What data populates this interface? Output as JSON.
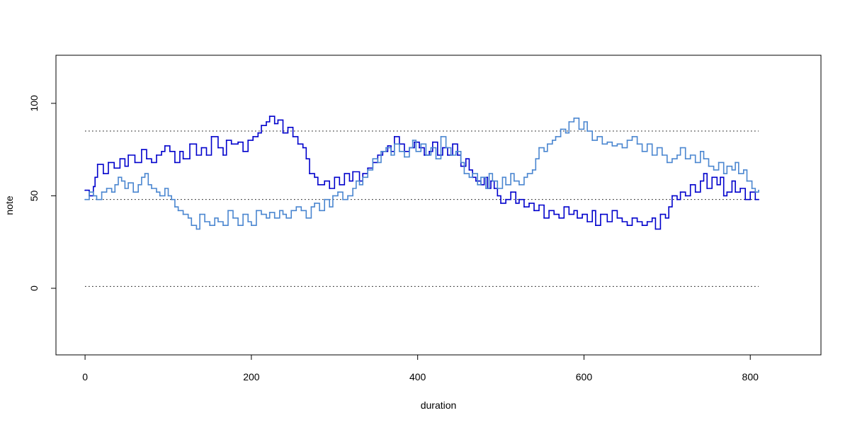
{
  "chart_data": {
    "type": "line",
    "step": true,
    "title": "",
    "xlabel": "duration",
    "ylabel": "note",
    "xlim": [
      -35,
      885
    ],
    "ylim": [
      -36,
      126
    ],
    "xticks": [
      0,
      200,
      400,
      600,
      800
    ],
    "yticks": [
      0,
      50,
      100
    ],
    "reference_lines": [
      {
        "y": 85,
        "x": [
          0,
          810
        ],
        "style": "dotted"
      },
      {
        "y": 48,
        "x": [
          0,
          810
        ],
        "style": "dotted"
      },
      {
        "y": 1,
        "x": [
          0,
          810
        ],
        "style": "dotted"
      }
    ],
    "series": [
      {
        "color": "#0000cc",
        "points": [
          [
            0,
            53
          ],
          [
            5,
            50
          ],
          [
            10,
            55
          ],
          [
            12,
            60
          ],
          [
            15,
            67
          ],
          [
            22,
            62
          ],
          [
            28,
            68
          ],
          [
            35,
            65
          ],
          [
            42,
            70
          ],
          [
            48,
            66
          ],
          [
            52,
            72
          ],
          [
            60,
            68
          ],
          [
            68,
            75
          ],
          [
            74,
            70
          ],
          [
            80,
            68
          ],
          [
            86,
            72
          ],
          [
            92,
            74
          ],
          [
            96,
            77
          ],
          [
            102,
            74
          ],
          [
            108,
            68
          ],
          [
            114,
            74
          ],
          [
            118,
            70
          ],
          [
            126,
            78
          ],
          [
            134,
            72
          ],
          [
            140,
            76
          ],
          [
            146,
            72
          ],
          [
            152,
            82
          ],
          [
            160,
            76
          ],
          [
            166,
            72
          ],
          [
            170,
            80
          ],
          [
            176,
            78
          ],
          [
            184,
            79
          ],
          [
            190,
            74
          ],
          [
            196,
            80
          ],
          [
            202,
            82
          ],
          [
            208,
            84
          ],
          [
            212,
            88
          ],
          [
            218,
            90
          ],
          [
            222,
            93
          ],
          [
            228,
            89
          ],
          [
            232,
            91
          ],
          [
            238,
            84
          ],
          [
            244,
            87
          ],
          [
            250,
            82
          ],
          [
            256,
            78
          ],
          [
            262,
            76
          ],
          [
            266,
            70
          ],
          [
            270,
            62
          ],
          [
            276,
            60
          ],
          [
            280,
            56
          ],
          [
            288,
            58
          ],
          [
            294,
            54
          ],
          [
            300,
            60
          ],
          [
            306,
            56
          ],
          [
            312,
            62
          ],
          [
            318,
            58
          ],
          [
            322,
            63
          ],
          [
            330,
            58
          ],
          [
            334,
            62
          ],
          [
            340,
            65
          ],
          [
            346,
            68
          ],
          [
            352,
            72
          ],
          [
            358,
            74
          ],
          [
            364,
            77
          ],
          [
            368,
            74
          ],
          [
            372,
            82
          ],
          [
            378,
            78
          ],
          [
            384,
            74
          ],
          [
            390,
            76
          ],
          [
            396,
            79
          ],
          [
            402,
            76
          ],
          [
            408,
            72
          ],
          [
            414,
            74
          ],
          [
            418,
            79
          ],
          [
            424,
            72
          ],
          [
            430,
            76
          ],
          [
            436,
            72
          ],
          [
            442,
            78
          ],
          [
            448,
            72
          ],
          [
            452,
            66
          ],
          [
            458,
            70
          ],
          [
            462,
            64
          ],
          [
            466,
            60
          ],
          [
            470,
            58
          ],
          [
            476,
            56
          ],
          [
            480,
            60
          ],
          [
            484,
            54
          ],
          [
            488,
            58
          ],
          [
            492,
            54
          ],
          [
            496,
            50
          ],
          [
            500,
            46
          ],
          [
            506,
            48
          ],
          [
            512,
            52
          ],
          [
            518,
            46
          ],
          [
            522,
            48
          ],
          [
            528,
            44
          ],
          [
            534,
            46
          ],
          [
            540,
            42
          ],
          [
            546,
            45
          ],
          [
            552,
            38
          ],
          [
            558,
            42
          ],
          [
            564,
            40
          ],
          [
            570,
            38
          ],
          [
            576,
            44
          ],
          [
            582,
            40
          ],
          [
            588,
            42
          ],
          [
            592,
            38
          ],
          [
            598,
            40
          ],
          [
            604,
            36
          ],
          [
            610,
            42
          ],
          [
            614,
            34
          ],
          [
            620,
            40
          ],
          [
            628,
            36
          ],
          [
            634,
            42
          ],
          [
            640,
            38
          ],
          [
            646,
            36
          ],
          [
            652,
            34
          ],
          [
            658,
            38
          ],
          [
            664,
            36
          ],
          [
            670,
            34
          ],
          [
            676,
            36
          ],
          [
            682,
            38
          ],
          [
            686,
            32
          ],
          [
            692,
            40
          ],
          [
            698,
            38
          ],
          [
            702,
            44
          ],
          [
            706,
            50
          ],
          [
            712,
            48
          ],
          [
            716,
            52
          ],
          [
            722,
            50
          ],
          [
            728,
            56
          ],
          [
            734,
            52
          ],
          [
            740,
            58
          ],
          [
            744,
            62
          ],
          [
            748,
            54
          ],
          [
            754,
            60
          ],
          [
            760,
            56
          ],
          [
            764,
            60
          ],
          [
            768,
            50
          ],
          [
            772,
            52
          ],
          [
            778,
            58
          ],
          [
            782,
            52
          ],
          [
            788,
            54
          ],
          [
            794,
            48
          ],
          [
            800,
            52
          ],
          [
            806,
            48
          ],
          [
            810,
            48
          ]
        ]
      },
      {
        "color": "#4a86d0",
        "points": [
          [
            0,
            48
          ],
          [
            5,
            52
          ],
          [
            10,
            50
          ],
          [
            14,
            48
          ],
          [
            20,
            52
          ],
          [
            26,
            54
          ],
          [
            32,
            52
          ],
          [
            36,
            56
          ],
          [
            40,
            60
          ],
          [
            44,
            58
          ],
          [
            48,
            54
          ],
          [
            52,
            57
          ],
          [
            58,
            52
          ],
          [
            64,
            56
          ],
          [
            68,
            60
          ],
          [
            72,
            62
          ],
          [
            76,
            56
          ],
          [
            80,
            54
          ],
          [
            86,
            52
          ],
          [
            90,
            50
          ],
          [
            96,
            54
          ],
          [
            100,
            50
          ],
          [
            104,
            48
          ],
          [
            108,
            44
          ],
          [
            112,
            42
          ],
          [
            118,
            40
          ],
          [
            124,
            38
          ],
          [
            128,
            34
          ],
          [
            134,
            32
          ],
          [
            138,
            40
          ],
          [
            144,
            36
          ],
          [
            150,
            34
          ],
          [
            156,
            38
          ],
          [
            160,
            36
          ],
          [
            166,
            34
          ],
          [
            172,
            42
          ],
          [
            178,
            38
          ],
          [
            184,
            34
          ],
          [
            190,
            40
          ],
          [
            196,
            36
          ],
          [
            200,
            34
          ],
          [
            206,
            42
          ],
          [
            212,
            40
          ],
          [
            218,
            38
          ],
          [
            222,
            41
          ],
          [
            228,
            38
          ],
          [
            234,
            42
          ],
          [
            238,
            40
          ],
          [
            242,
            38
          ],
          [
            248,
            42
          ],
          [
            254,
            44
          ],
          [
            260,
            42
          ],
          [
            266,
            38
          ],
          [
            272,
            44
          ],
          [
            276,
            46
          ],
          [
            282,
            42
          ],
          [
            288,
            48
          ],
          [
            294,
            44
          ],
          [
            298,
            50
          ],
          [
            304,
            52
          ],
          [
            310,
            48
          ],
          [
            316,
            50
          ],
          [
            322,
            54
          ],
          [
            326,
            58
          ],
          [
            330,
            56
          ],
          [
            334,
            60
          ],
          [
            340,
            64
          ],
          [
            346,
            70
          ],
          [
            352,
            68
          ],
          [
            356,
            74
          ],
          [
            362,
            76
          ],
          [
            368,
            72
          ],
          [
            372,
            78
          ],
          [
            378,
            74
          ],
          [
            384,
            71
          ],
          [
            390,
            76
          ],
          [
            394,
            80
          ],
          [
            398,
            74
          ],
          [
            404,
            78
          ],
          [
            410,
            72
          ],
          [
            416,
            76
          ],
          [
            422,
            70
          ],
          [
            428,
            82
          ],
          [
            434,
            76
          ],
          [
            440,
            72
          ],
          [
            446,
            74
          ],
          [
            452,
            68
          ],
          [
            456,
            62
          ],
          [
            462,
            60
          ],
          [
            466,
            62
          ],
          [
            472,
            56
          ],
          [
            476,
            60
          ],
          [
            482,
            54
          ],
          [
            486,
            62
          ],
          [
            490,
            58
          ],
          [
            496,
            54
          ],
          [
            502,
            60
          ],
          [
            506,
            56
          ],
          [
            512,
            62
          ],
          [
            516,
            58
          ],
          [
            522,
            56
          ],
          [
            528,
            60
          ],
          [
            532,
            62
          ],
          [
            538,
            64
          ],
          [
            542,
            70
          ],
          [
            546,
            76
          ],
          [
            552,
            74
          ],
          [
            556,
            78
          ],
          [
            562,
            80
          ],
          [
            566,
            82
          ],
          [
            572,
            86
          ],
          [
            578,
            84
          ],
          [
            582,
            90
          ],
          [
            588,
            92
          ],
          [
            594,
            86
          ],
          [
            600,
            90
          ],
          [
            604,
            85
          ],
          [
            610,
            80
          ],
          [
            616,
            82
          ],
          [
            622,
            78
          ],
          [
            628,
            79
          ],
          [
            634,
            77
          ],
          [
            640,
            78
          ],
          [
            646,
            76
          ],
          [
            652,
            80
          ],
          [
            658,
            82
          ],
          [
            664,
            78
          ],
          [
            670,
            74
          ],
          [
            676,
            78
          ],
          [
            682,
            72
          ],
          [
            688,
            76
          ],
          [
            694,
            72
          ],
          [
            700,
            68
          ],
          [
            706,
            70
          ],
          [
            712,
            72
          ],
          [
            716,
            76
          ],
          [
            722,
            70
          ],
          [
            728,
            72
          ],
          [
            734,
            68
          ],
          [
            740,
            74
          ],
          [
            744,
            70
          ],
          [
            750,
            66
          ],
          [
            756,
            64
          ],
          [
            762,
            68
          ],
          [
            768,
            62
          ],
          [
            772,
            66
          ],
          [
            778,
            64
          ],
          [
            782,
            68
          ],
          [
            786,
            62
          ],
          [
            792,
            64
          ],
          [
            796,
            58
          ],
          [
            802,
            54
          ],
          [
            806,
            52
          ],
          [
            810,
            53
          ]
        ]
      }
    ]
  }
}
